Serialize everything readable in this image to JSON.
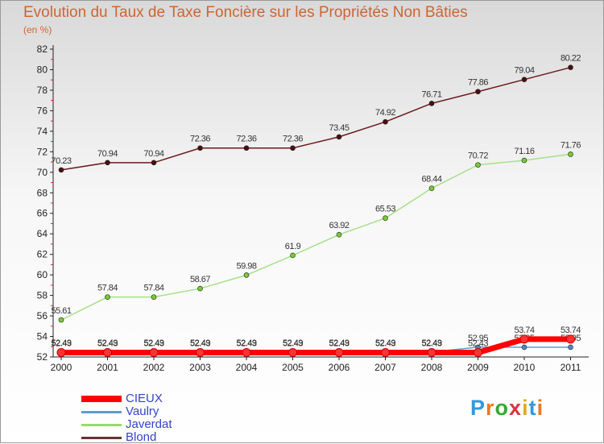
{
  "title": "Evolution du Taux de Taxe Foncière sur les Propriétés Non Bâties",
  "subtitle": "(en %)",
  "logo": {
    "text": "Proxiti",
    "colors": [
      "#3399dd",
      "#ee7722",
      "#33aa33",
      "#dd3344",
      "#ddaa22",
      "#3399dd",
      "#ee7722"
    ]
  },
  "legend": [
    {
      "label": "CIEUX",
      "color": "#ff0000"
    },
    {
      "label": "Vaulry",
      "color": "#6699cc"
    },
    {
      "label": "Javerdat",
      "color": "#99dd66"
    },
    {
      "label": "Blond",
      "color": "#663333"
    }
  ],
  "chart_data": {
    "type": "line",
    "title": "Evolution du Taux de Taxe Foncière sur les Propriétés Non Bâties",
    "ylabel": "(en %)",
    "xlabel": "",
    "x": [
      "2000",
      "2001",
      "2002",
      "2003",
      "2004",
      "2005",
      "2006",
      "2007",
      "2008",
      "2009",
      "2010",
      "2011"
    ],
    "ylim": [
      52,
      82
    ],
    "yticks": [
      52,
      54,
      56,
      58,
      60,
      62,
      64,
      66,
      68,
      70,
      72,
      74,
      76,
      78,
      80,
      82
    ],
    "grid": false,
    "series": [
      {
        "name": "Blond",
        "color": "#6b1c1c",
        "marker": "#4a0f0f",
        "values": [
          70.23,
          70.94,
          70.94,
          72.36,
          72.36,
          72.36,
          73.45,
          74.92,
          76.71,
          77.86,
          79.04,
          80.22
        ],
        "labels": [
          "70.23",
          "70.94",
          "70.94",
          "72.36",
          "72.36",
          "72.36",
          "73.45",
          "74.92",
          "76.71",
          "77.86",
          "79.04",
          "80.22"
        ]
      },
      {
        "name": "Javerdat",
        "color": "#a6e08a",
        "marker": "#77cc33",
        "values": [
          55.61,
          57.84,
          57.84,
          58.67,
          59.98,
          61.9,
          63.92,
          65.53,
          68.44,
          70.72,
          71.16,
          71.76
        ],
        "labels": [
          "55.61",
          "57.84",
          "57.84",
          "58.67",
          "59.98",
          "61.9",
          "63.92",
          "65.53",
          "68.44",
          "70.72",
          "71.16",
          "71.76"
        ]
      },
      {
        "name": "Vaulry",
        "color": "#6699cc",
        "marker": "#4d88c4",
        "values": [
          52.49,
          52.49,
          52.49,
          52.49,
          52.49,
          52.49,
          52.49,
          52.49,
          52.49,
          52.95,
          52.95,
          52.95
        ],
        "labels": [
          "52.49",
          "52.49",
          "52.49",
          "52.49",
          "52.49",
          "52.49",
          "52.49",
          "52.49",
          "52.49",
          "52.95",
          "52.95",
          "52.95"
        ]
      },
      {
        "name": "CIEUX",
        "color": "#ff0000",
        "marker": "#ff0000",
        "values": [
          52.43,
          52.43,
          52.43,
          52.43,
          52.43,
          52.43,
          52.43,
          52.43,
          52.43,
          52.43,
          53.74,
          53.74
        ],
        "labels": [
          "52.43",
          "52.43",
          "52.43",
          "52.43",
          "52.43",
          "52.43",
          "52.43",
          "52.43",
          "52.43",
          "52.43",
          "53.74",
          "53.74"
        ]
      }
    ]
  }
}
